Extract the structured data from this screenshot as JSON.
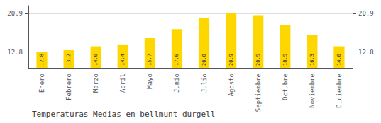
{
  "chart_data": {
    "type": "bar",
    "title": "Temperaturas Medias en bellmunt durgell",
    "categories": [
      "Enero",
      "Febrero",
      "Marzo",
      "Abril",
      "Mayo",
      "Junio",
      "Julio",
      "Agosto",
      "Septiembre",
      "Octubre",
      "Noviembre",
      "Diciembre"
    ],
    "values": [
      12.8,
      13.2,
      14.0,
      14.4,
      15.7,
      17.6,
      20.0,
      20.9,
      20.5,
      18.5,
      16.3,
      14.0
    ],
    "value_labels": [
      "12.8",
      "13.2",
      "14.0",
      "14.4",
      "15.7",
      "17.6",
      "20.0",
      "20.9",
      "20.5",
      "18.5",
      "16.3",
      "14.0"
    ],
    "color": "#FFD700",
    "ylim": [
      9.5,
      22.5
    ],
    "yticks": [
      12.8,
      20.9
    ],
    "y2lim": [
      9.5,
      22.5
    ],
    "y2ticks": [
      12.8,
      20.9
    ],
    "data_labels": true,
    "grid": true
  }
}
